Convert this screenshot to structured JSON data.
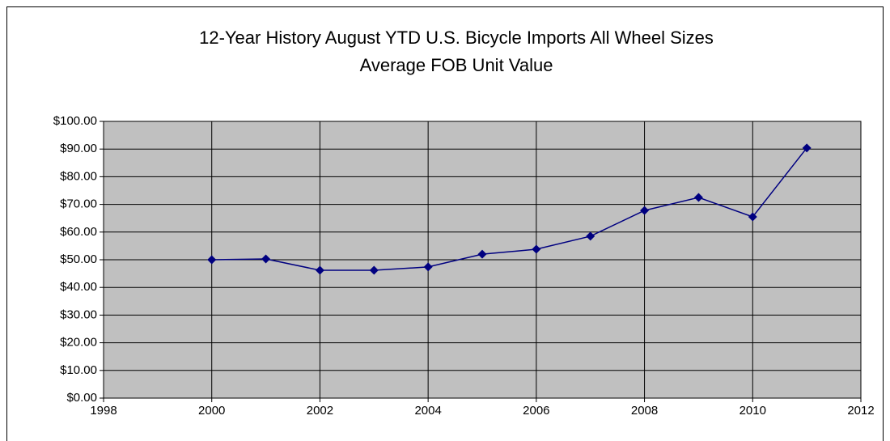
{
  "chart_data": {
    "type": "line",
    "title": "12-Year History August YTD U.S. Bicycle Imports All Wheel Sizes",
    "subtitle": "Average FOB Unit Value",
    "x": [
      2000,
      2001,
      2002,
      2003,
      2004,
      2005,
      2006,
      2007,
      2008,
      2009,
      2010,
      2011
    ],
    "values": [
      50,
      50.3,
      46.2,
      46.2,
      47.4,
      52,
      53.8,
      58.5,
      67.8,
      72.5,
      65.5,
      90.4
    ],
    "color": "#000080",
    "plot_background": "#c0c0c0",
    "grid": true,
    "xlim": [
      1998,
      2012
    ],
    "xticks": [
      1998,
      2000,
      2002,
      2004,
      2006,
      2008,
      2010,
      2012
    ],
    "ylim": [
      0,
      100
    ],
    "yticks": [
      {
        "value": 0,
        "label": "$0.00"
      },
      {
        "value": 10,
        "label": "$10.00"
      },
      {
        "value": 20,
        "label": "$20.00"
      },
      {
        "value": 30,
        "label": "$30.00"
      },
      {
        "value": 40,
        "label": "$40.00"
      },
      {
        "value": 50,
        "label": "$50.00"
      },
      {
        "value": 60,
        "label": "$60.00"
      },
      {
        "value": 70,
        "label": "$70.00"
      },
      {
        "value": 80,
        "label": "$80.00"
      },
      {
        "value": 90,
        "label": "$90.00"
      },
      {
        "value": 100,
        "label": "$100.00"
      }
    ]
  }
}
